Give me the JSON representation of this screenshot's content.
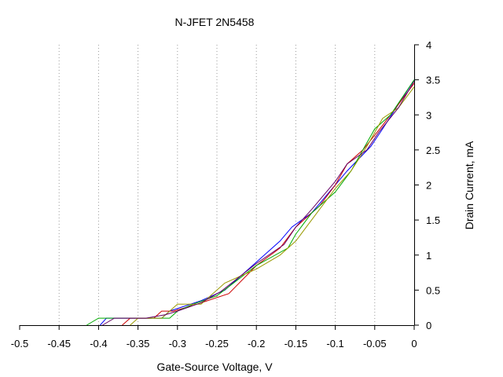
{
  "chart_data": {
    "type": "line",
    "title": "N-JFET 2N5458",
    "xlabel": "Gate-Source Voltage, V",
    "ylabel": "Drain Current, mA",
    "xlim": [
      -0.5,
      0
    ],
    "ylim": [
      0,
      4
    ],
    "x_ticks": [
      "-0.5",
      "-0.45",
      "-0.4",
      "-0.35",
      "-0.3",
      "-0.25",
      "-0.2",
      "-0.15",
      "-0.1",
      "-0.05",
      "0"
    ],
    "y_ticks": [
      "0",
      "0.5",
      "1",
      "1.5",
      "2",
      "2.5",
      "3",
      "3.5",
      "4"
    ],
    "y_axis_side": "right",
    "grid": "vertical dotted",
    "legend": "none",
    "series": [
      {
        "color": "#0000ff",
        "x": [
          -0.398,
          -0.39,
          -0.38,
          -0.32,
          -0.31,
          -0.27,
          -0.24,
          -0.2,
          -0.17,
          -0.155,
          -0.13,
          -0.1,
          -0.085,
          -0.055,
          -0.04,
          -0.02,
          0
        ],
        "y": [
          0,
          0.1,
          0.1,
          0.1,
          0.2,
          0.35,
          0.5,
          0.9,
          1.2,
          1.4,
          1.6,
          2.0,
          2.2,
          2.55,
          2.8,
          3.15,
          3.5
        ]
      },
      {
        "color": "#cc0000",
        "x": [
          -0.37,
          -0.36,
          -0.33,
          -0.32,
          -0.305,
          -0.275,
          -0.235,
          -0.2,
          -0.17,
          -0.15,
          -0.12,
          -0.1,
          -0.085,
          -0.065,
          -0.04,
          -0.02,
          0
        ],
        "y": [
          0,
          0.1,
          0.1,
          0.2,
          0.2,
          0.3,
          0.45,
          0.85,
          1.1,
          1.4,
          1.7,
          2.0,
          2.3,
          2.5,
          2.85,
          3.15,
          3.45
        ]
      },
      {
        "color": "#00aa00",
        "x": [
          -0.415,
          -0.4,
          -0.36,
          -0.31,
          -0.3,
          -0.28,
          -0.25,
          -0.2,
          -0.16,
          -0.15,
          -0.13,
          -0.1,
          -0.08,
          -0.065,
          -0.05,
          -0.03,
          0
        ],
        "y": [
          0,
          0.1,
          0.1,
          0.1,
          0.2,
          0.3,
          0.42,
          0.85,
          1.1,
          1.3,
          1.6,
          1.9,
          2.2,
          2.5,
          2.8,
          3.0,
          3.5
        ]
      },
      {
        "color": "#999900",
        "x": [
          -0.36,
          -0.35,
          -0.32,
          -0.3,
          -0.27,
          -0.24,
          -0.22,
          -0.2,
          -0.17,
          -0.15,
          -0.12,
          -0.1,
          -0.08,
          -0.06,
          -0.04,
          -0.02,
          0
        ],
        "y": [
          0,
          0.1,
          0.1,
          0.3,
          0.3,
          0.6,
          0.7,
          0.8,
          1.0,
          1.2,
          1.65,
          1.95,
          2.2,
          2.55,
          2.95,
          3.1,
          3.4
        ]
      },
      {
        "color": "#660066",
        "x": [
          -0.395,
          -0.38,
          -0.34,
          -0.315,
          -0.3,
          -0.27,
          -0.245,
          -0.2,
          -0.165,
          -0.15,
          -0.13,
          -0.1,
          -0.085,
          -0.06,
          -0.045,
          -0.02,
          0
        ],
        "y": [
          0,
          0.1,
          0.1,
          0.15,
          0.2,
          0.32,
          0.48,
          0.88,
          1.15,
          1.4,
          1.65,
          2.05,
          2.3,
          2.5,
          2.75,
          3.1,
          3.48
        ]
      }
    ]
  }
}
